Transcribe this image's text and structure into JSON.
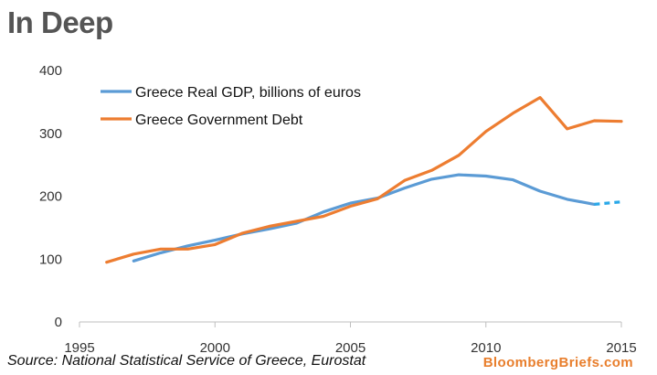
{
  "title": "In Deep",
  "source": "Source: National Statistical Service of Greece, Eurostat",
  "brand": "BloombergBriefs.com",
  "colors": {
    "gdp": "#5b9bd5",
    "gdp_forecast": "#2aa8e8",
    "debt": "#ed7d31",
    "axis": "#bfbfbf"
  },
  "chart_data": {
    "type": "line",
    "title": "In Deep",
    "xlabel": "",
    "ylabel": "",
    "xlim": [
      1995,
      2015
    ],
    "ylim": [
      0,
      400
    ],
    "x_ticks": [
      1995,
      2000,
      2005,
      2010,
      2015
    ],
    "y_ticks": [
      0,
      100,
      200,
      300,
      400
    ],
    "legend_position": "top-left",
    "series": [
      {
        "name": "Greece Real GDP, billions of euros",
        "x": [
          1997,
          1998,
          1999,
          2000,
          2001,
          2002,
          2003,
          2004,
          2005,
          2006,
          2007,
          2008,
          2009,
          2010,
          2011,
          2012,
          2013,
          2014
        ],
        "values": [
          97,
          110,
          121,
          130,
          140,
          148,
          157,
          175,
          189,
          197,
          213,
          227,
          234,
          232,
          226,
          208,
          195,
          187
        ]
      },
      {
        "name": "Greece Real GDP forecast (dashed)",
        "x": [
          2014,
          2015
        ],
        "values": [
          187,
          191
        ]
      },
      {
        "name": "Greece Government Debt",
        "x": [
          1996,
          1997,
          1998,
          1999,
          2000,
          2001,
          2002,
          2003,
          2004,
          2005,
          2006,
          2007,
          2008,
          2009,
          2010,
          2011,
          2012,
          2013,
          2014,
          2015
        ],
        "values": [
          95,
          108,
          116,
          116,
          123,
          141,
          152,
          160,
          168,
          184,
          196,
          225,
          241,
          265,
          303,
          332,
          357,
          307,
          320,
          319
        ]
      }
    ]
  }
}
